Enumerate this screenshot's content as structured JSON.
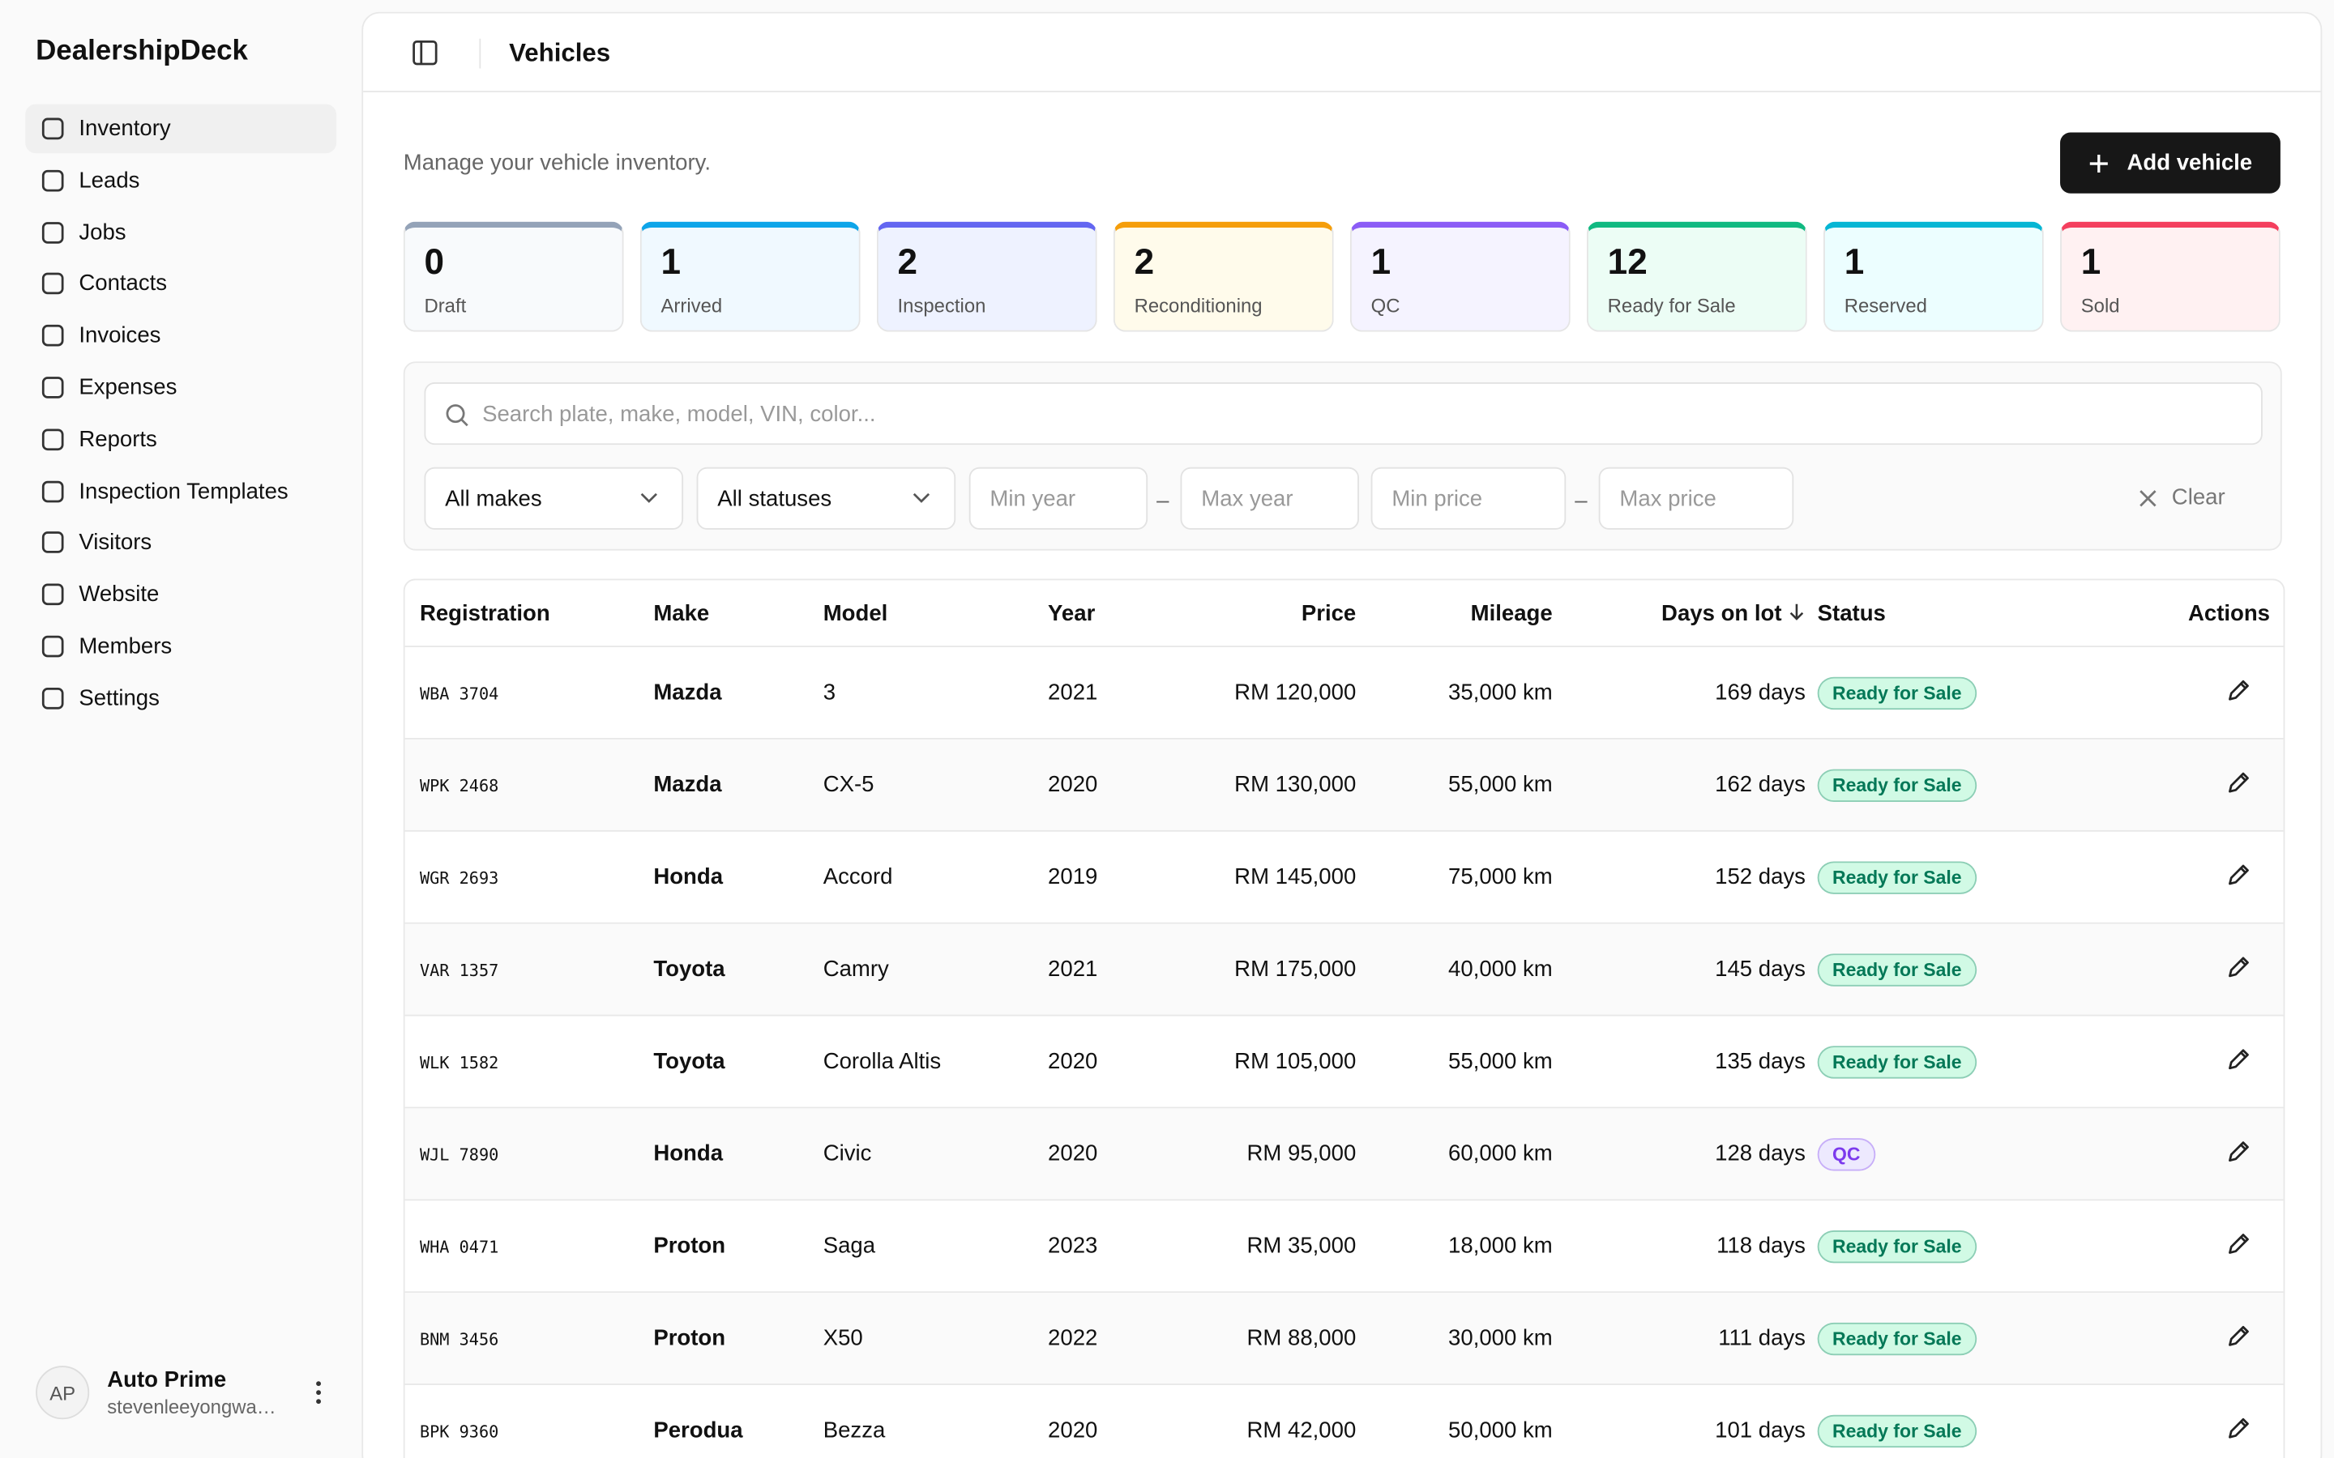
{
  "sidebar": {
    "brand": "DealershipDeck",
    "nav": [
      "Inventory",
      "Leads",
      "Jobs",
      "Contacts",
      "Invoices",
      "Expenses",
      "Reports",
      "Inspection Templates",
      "Visitors",
      "Website",
      "Members",
      "Settings"
    ],
    "user": {
      "initials": "AP",
      "name": "Auto Prime",
      "email": "stevenleeyongwa…"
    }
  },
  "header": {
    "title": "Vehicles",
    "subtitle": "Manage your vehicle inventory.",
    "add_button": "Add vehicle"
  },
  "stats": [
    {
      "count": 0,
      "label": "Draft"
    },
    {
      "count": 1,
      "label": "Arrived"
    },
    {
      "count": 2,
      "label": "Inspection"
    },
    {
      "count": 2,
      "label": "Reconditioning"
    },
    {
      "count": 1,
      "label": "QC"
    },
    {
      "count": 12,
      "label": "Ready for Sale"
    },
    {
      "count": 1,
      "label": "Reserved"
    },
    {
      "count": 1,
      "label": "Sold"
    }
  ],
  "filters": {
    "search": "Search plate, make, model, VIN, color...",
    "makes": "All makes",
    "statuses": "All statuses",
    "min_year": "Min year",
    "max_year": "Max year",
    "min_price": "Min price",
    "max_price": "Max price",
    "clear": "Clear"
  },
  "table": {
    "headers": [
      "Registration",
      "Make",
      "Model",
      "Year",
      "Price",
      "Mileage",
      "Days on lot",
      "Status",
      "Actions"
    ],
    "rows": [
      [
        "WBA 3704",
        "Mazda",
        "3",
        "2021",
        "RM 120,000",
        "35,000 km",
        "169 days",
        "Ready for Sale"
      ],
      [
        "WPK 2468",
        "Mazda",
        "CX-5",
        "2020",
        "RM 130,000",
        "55,000 km",
        "162 days",
        "Ready for Sale"
      ],
      [
        "WGR 2693",
        "Honda",
        "Accord",
        "2019",
        "RM 145,000",
        "75,000 km",
        "152 days",
        "Ready for Sale"
      ],
      [
        "VAR 1357",
        "Toyota",
        "Camry",
        "2021",
        "RM 175,000",
        "40,000 km",
        "145 days",
        "Ready for Sale"
      ],
      [
        "WLK 1582",
        "Toyota",
        "Corolla Altis",
        "2020",
        "RM 105,000",
        "55,000 km",
        "135 days",
        "Ready for Sale"
      ],
      [
        "WJL 7890",
        "Honda",
        "Civic",
        "2020",
        "RM 95,000",
        "60,000 km",
        "128 days",
        "QC"
      ],
      [
        "WHA 0471",
        "Proton",
        "Saga",
        "2023",
        "RM 35,000",
        "18,000 km",
        "118 days",
        "Ready for Sale"
      ],
      [
        "BNM 3456",
        "Proton",
        "X50",
        "2022",
        "RM 88,000",
        "30,000 km",
        "111 days",
        "Ready for Sale"
      ],
      [
        "BPK 9360",
        "Perodua",
        "Bezza",
        "2020",
        "RM 42,000",
        "50,000 km",
        "101 days",
        "Ready for Sale"
      ]
    ]
  }
}
